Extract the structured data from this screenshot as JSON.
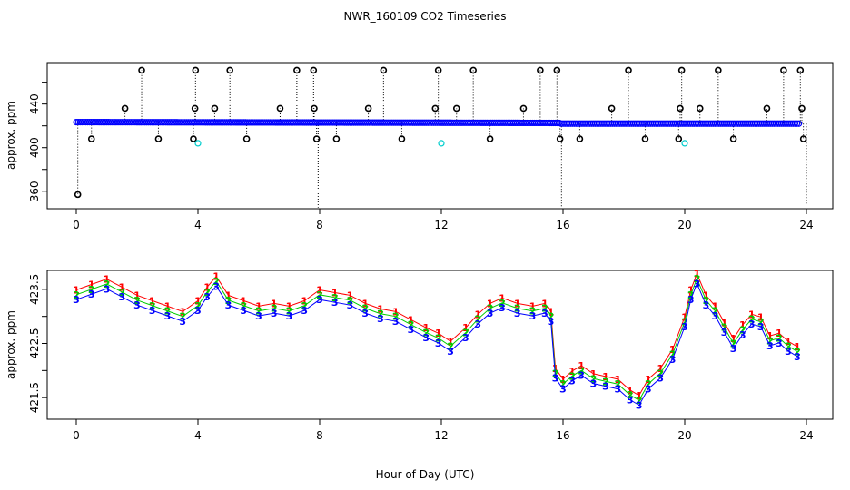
{
  "title": "NWR_160109  CO2 Timeseries",
  "xlabel": "Hour of Day (UTC)",
  "chart_data": [
    {
      "type": "scatter",
      "ylabel": "approx. ppm",
      "xlim": [
        -0.6,
        24.6
      ],
      "ylim": [
        344,
        478
      ],
      "x_ticks": [
        0,
        4,
        8,
        12,
        16,
        20,
        24
      ],
      "x_tick_labels": [
        "0",
        "4",
        "8",
        "12",
        "16",
        "20",
        "24"
      ],
      "y_ticks": [
        360,
        400,
        440
      ],
      "y_tick_labels": [
        "360",
        "400",
        "440"
      ],
      "y_minor_ticks": [
        380,
        420,
        460
      ],
      "baseline": {
        "from": 0,
        "to": 23.8,
        "start": 423.4,
        "end": 422.3,
        "dip_at": 15.9,
        "dip_to": 421.6,
        "color": "#0000ff"
      },
      "spikes": [
        {
          "x": 0.05,
          "y": 357
        },
        {
          "x": 0.5,
          "y": 408
        },
        {
          "x": 1.6,
          "y": 436
        },
        {
          "x": 2.15,
          "y": 471
        },
        {
          "x": 2.7,
          "y": 408
        },
        {
          "x": 3.85,
          "y": 408
        },
        {
          "x": 3.9,
          "y": 436
        },
        {
          "x": 3.92,
          "y": 471
        },
        {
          "x": 4.55,
          "y": 436
        },
        {
          "x": 5.05,
          "y": 471
        },
        {
          "x": 5.6,
          "y": 408
        },
        {
          "x": 6.7,
          "y": 436
        },
        {
          "x": 7.25,
          "y": 471
        },
        {
          "x": 7.8,
          "y": 471
        },
        {
          "x": 7.82,
          "y": 436
        },
        {
          "x": 7.9,
          "y": 408
        },
        {
          "x": 7.95,
          "y": 345
        },
        {
          "x": 8.55,
          "y": 408
        },
        {
          "x": 9.6,
          "y": 436
        },
        {
          "x": 10.1,
          "y": 471
        },
        {
          "x": 10.7,
          "y": 408
        },
        {
          "x": 11.8,
          "y": 436
        },
        {
          "x": 11.9,
          "y": 471
        },
        {
          "x": 12.5,
          "y": 436
        },
        {
          "x": 13.05,
          "y": 471
        },
        {
          "x": 13.6,
          "y": 408
        },
        {
          "x": 14.7,
          "y": 436
        },
        {
          "x": 15.25,
          "y": 471
        },
        {
          "x": 15.8,
          "y": 471
        },
        {
          "x": 15.9,
          "y": 408
        },
        {
          "x": 15.95,
          "y": 345
        },
        {
          "x": 16.55,
          "y": 408
        },
        {
          "x": 17.6,
          "y": 436
        },
        {
          "x": 18.15,
          "y": 471
        },
        {
          "x": 18.7,
          "y": 408
        },
        {
          "x": 19.8,
          "y": 408
        },
        {
          "x": 19.85,
          "y": 436
        },
        {
          "x": 19.9,
          "y": 471
        },
        {
          "x": 20.5,
          "y": 436
        },
        {
          "x": 21.1,
          "y": 471
        },
        {
          "x": 21.6,
          "y": 408
        },
        {
          "x": 22.7,
          "y": 436
        },
        {
          "x": 23.25,
          "y": 471
        },
        {
          "x": 23.8,
          "y": 471
        },
        {
          "x": 23.85,
          "y": 436
        },
        {
          "x": 23.9,
          "y": 408
        },
        {
          "x": 24.0,
          "y": 348
        }
      ],
      "cyan_points": [
        {
          "x": 4.0,
          "y": 404
        },
        {
          "x": 12.0,
          "y": 404
        },
        {
          "x": 20.0,
          "y": 404
        }
      ],
      "colors": {
        "spike": "#000000",
        "baseline": "#0000ff",
        "cyan": "#00cdcd"
      }
    },
    {
      "type": "line",
      "ylabel": "approx. ppm",
      "xlim": [
        -0.6,
        24.6
      ],
      "ylim": [
        421.1,
        423.85
      ],
      "x_ticks": [
        0,
        4,
        8,
        12,
        16,
        20,
        24
      ],
      "x_tick_labels": [
        "0",
        "4",
        "8",
        "12",
        "16",
        "20",
        "24"
      ],
      "y_ticks": [
        421.5,
        422.5,
        423.5
      ],
      "y_tick_labels": [
        "421.5",
        "422.5",
        "423.5"
      ],
      "y_minor_ticks": [
        422.0,
        423.0
      ],
      "series": [
        {
          "marker": "1",
          "color": "#ff0000",
          "offset": 0.09,
          "x": [
            0,
            0.5,
            1.0,
            1.5,
            2.0,
            2.5,
            3.0,
            3.5,
            4.0,
            4.3,
            4.6,
            5.0,
            5.5,
            6.0,
            6.5,
            7.0,
            7.5,
            8.0,
            8.5,
            9.0,
            9.5,
            10.0,
            10.5,
            11.0,
            11.5,
            11.9,
            12.3,
            12.8,
            13.2,
            13.6,
            14.0,
            14.5,
            15.0,
            15.4,
            15.6,
            15.75,
            16.0,
            16.3,
            16.6,
            17.0,
            17.4,
            17.8,
            18.2,
            18.5,
            18.8,
            19.2,
            19.6,
            20.0,
            20.2,
            20.4,
            20.7,
            21.0,
            21.3,
            21.6,
            21.9,
            22.2,
            22.5,
            22.8,
            23.1,
            23.4,
            23.7
          ],
          "y": [
            423.4,
            423.5,
            423.6,
            423.45,
            423.3,
            423.2,
            423.1,
            423.0,
            423.2,
            423.45,
            423.65,
            423.3,
            423.2,
            423.1,
            423.15,
            423.1,
            423.2,
            423.4,
            423.35,
            423.3,
            423.15,
            423.05,
            423.0,
            422.85,
            422.7,
            422.6,
            422.45,
            422.7,
            422.95,
            423.15,
            423.25,
            423.15,
            423.1,
            423.15,
            423.0,
            421.95,
            421.75,
            421.9,
            422.0,
            421.85,
            421.8,
            421.75,
            421.55,
            421.45,
            421.75,
            421.95,
            422.3,
            422.9,
            423.4,
            423.7,
            423.3,
            423.1,
            422.8,
            422.5,
            422.75,
            422.95,
            422.9,
            422.55,
            422.6,
            422.45,
            422.35
          ]
        },
        {
          "marker": "2",
          "color": "#00cd00",
          "offset": 0.0,
          "x": [
            0,
            0.5,
            1.0,
            1.5,
            2.0,
            2.5,
            3.0,
            3.5,
            4.0,
            4.3,
            4.6,
            5.0,
            5.5,
            6.0,
            6.5,
            7.0,
            7.5,
            8.0,
            8.5,
            9.0,
            9.5,
            10.0,
            10.5,
            11.0,
            11.5,
            11.9,
            12.3,
            12.8,
            13.2,
            13.6,
            14.0,
            14.5,
            15.0,
            15.4,
            15.6,
            15.75,
            16.0,
            16.3,
            16.6,
            17.0,
            17.4,
            17.8,
            18.2,
            18.5,
            18.8,
            19.2,
            19.6,
            20.0,
            20.2,
            20.4,
            20.7,
            21.0,
            21.3,
            21.6,
            21.9,
            22.2,
            22.5,
            22.8,
            23.1,
            23.4,
            23.7
          ],
          "y": [
            423.4,
            423.5,
            423.6,
            423.45,
            423.3,
            423.2,
            423.1,
            423.0,
            423.2,
            423.45,
            423.65,
            423.3,
            423.2,
            423.1,
            423.15,
            423.1,
            423.2,
            423.4,
            423.35,
            423.3,
            423.15,
            423.05,
            423.0,
            422.85,
            422.7,
            422.6,
            422.45,
            422.7,
            422.95,
            423.15,
            423.25,
            423.15,
            423.1,
            423.15,
            423.0,
            421.95,
            421.75,
            421.9,
            422.0,
            421.85,
            421.8,
            421.75,
            421.55,
            421.45,
            421.75,
            421.95,
            422.3,
            422.9,
            423.4,
            423.7,
            423.3,
            423.1,
            422.8,
            422.5,
            422.75,
            422.95,
            422.9,
            422.55,
            422.6,
            422.45,
            422.35
          ]
        },
        {
          "marker": "3",
          "color": "#0000ff",
          "offset": -0.09,
          "x": [
            0,
            0.5,
            1.0,
            1.5,
            2.0,
            2.5,
            3.0,
            3.5,
            4.0,
            4.3,
            4.6,
            5.0,
            5.5,
            6.0,
            6.5,
            7.0,
            7.5,
            8.0,
            8.5,
            9.0,
            9.5,
            10.0,
            10.5,
            11.0,
            11.5,
            11.9,
            12.3,
            12.8,
            13.2,
            13.6,
            14.0,
            14.5,
            15.0,
            15.4,
            15.6,
            15.75,
            16.0,
            16.3,
            16.6,
            17.0,
            17.4,
            17.8,
            18.2,
            18.5,
            18.8,
            19.2,
            19.6,
            20.0,
            20.2,
            20.4,
            20.7,
            21.0,
            21.3,
            21.6,
            21.9,
            22.2,
            22.5,
            22.8,
            23.1,
            23.4,
            23.7
          ],
          "y": [
            423.4,
            423.5,
            423.6,
            423.45,
            423.3,
            423.2,
            423.1,
            423.0,
            423.2,
            423.45,
            423.65,
            423.3,
            423.2,
            423.1,
            423.15,
            423.1,
            423.2,
            423.4,
            423.35,
            423.3,
            423.15,
            423.05,
            423.0,
            422.85,
            422.7,
            422.6,
            422.45,
            422.7,
            422.95,
            423.15,
            423.25,
            423.15,
            423.1,
            423.15,
            423.0,
            421.95,
            421.75,
            421.9,
            422.0,
            421.85,
            421.8,
            421.75,
            421.55,
            421.45,
            421.75,
            421.95,
            422.3,
            422.9,
            423.4,
            423.7,
            423.3,
            423.1,
            422.8,
            422.5,
            422.75,
            422.95,
            422.9,
            422.55,
            422.6,
            422.45,
            422.35
          ]
        }
      ]
    }
  ]
}
